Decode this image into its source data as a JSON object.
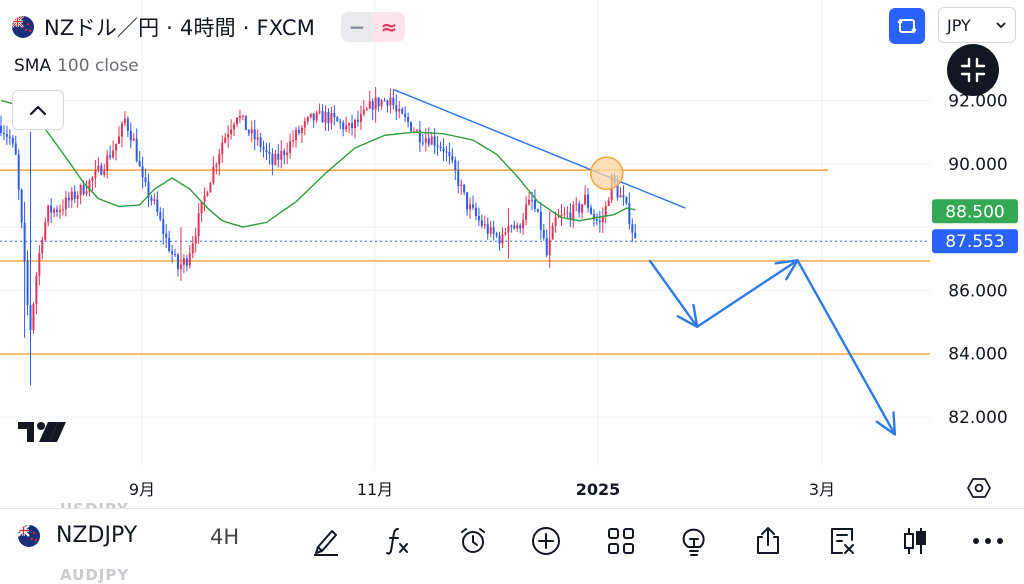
{
  "header": {
    "title": "NZドル／円 · 4時間 · FXCM",
    "indicator_name": "SMA",
    "indicator_params": "100 close",
    "currency_select": "JPY",
    "pill_left": "−",
    "pill_right": "≈"
  },
  "toolbar": {
    "symbol": "NZDJPY",
    "interval": "4H",
    "ghost_top": "USDJPY",
    "ghost_bottom": "AUDJPY"
  },
  "colors": {
    "up": "#e03655",
    "down": "#2f5bea",
    "sma": "#2f9e3b",
    "hline": "#f5a23a",
    "trend": "#2f7ae8",
    "accent": "#2962ff",
    "price_badge": "#2962ff",
    "sma_badge": "#34a853"
  },
  "chart_data": {
    "type": "candlestick",
    "title": "NZドル／円 · 4時間 · FXCM",
    "yticks": [
      "92.000",
      "90.000",
      "86.000",
      "84.000",
      "82.000"
    ],
    "xticks": [
      "9月",
      "11月",
      "2025",
      "3月"
    ],
    "ylim": [
      80.8,
      93.0
    ],
    "grid": true,
    "horizontal_levels": [
      89.8,
      86.93,
      83.99
    ],
    "current_price": "87.553",
    "sma_value": "88.500",
    "series": [
      {
        "name": "SMA 100 close",
        "anchors": [
          [
            0,
            92.0
          ],
          [
            8,
            91.8
          ],
          [
            15,
            91.1
          ],
          [
            22,
            90.2
          ],
          [
            28,
            89.4
          ],
          [
            33,
            88.9
          ],
          [
            40,
            88.65
          ],
          [
            47,
            88.7
          ],
          [
            52,
            89.2
          ],
          [
            58,
            89.55
          ],
          [
            64,
            89.2
          ],
          [
            70,
            88.6
          ],
          [
            75,
            88.2
          ],
          [
            82,
            88.0
          ],
          [
            90,
            88.15
          ],
          [
            100,
            88.8
          ],
          [
            110,
            89.7
          ],
          [
            120,
            90.5
          ],
          [
            130,
            90.9
          ],
          [
            140,
            91.0
          ],
          [
            150,
            90.95
          ],
          [
            160,
            90.75
          ],
          [
            168,
            90.3
          ],
          [
            175,
            89.6
          ],
          [
            182,
            88.8
          ],
          [
            190,
            88.3
          ],
          [
            196,
            88.2
          ],
          [
            202,
            88.3
          ],
          [
            208,
            88.4
          ],
          [
            212,
            88.6
          ],
          [
            215,
            88.55
          ]
        ]
      },
      {
        "name": "price",
        "anchors": [
          [
            0,
            91.2
          ],
          [
            3,
            90.8
          ],
          [
            5,
            90.2
          ],
          [
            7,
            88.0
          ],
          [
            9,
            85.5
          ],
          [
            10,
            84.8
          ],
          [
            12,
            86.5
          ],
          [
            14,
            87.8
          ],
          [
            16,
            88.5
          ],
          [
            20,
            88.6
          ],
          [
            25,
            89.0
          ],
          [
            30,
            89.4
          ],
          [
            35,
            90.0
          ],
          [
            40,
            90.8
          ],
          [
            42,
            91.4
          ],
          [
            45,
            90.7
          ],
          [
            48,
            89.4
          ],
          [
            52,
            88.7
          ],
          [
            56,
            87.6
          ],
          [
            60,
            86.7
          ],
          [
            63,
            87.0
          ],
          [
            66,
            87.9
          ],
          [
            70,
            89.3
          ],
          [
            75,
            90.7
          ],
          [
            80,
            91.6
          ],
          [
            84,
            91.0
          ],
          [
            88,
            90.6
          ],
          [
            92,
            90.0
          ],
          [
            96,
            90.4
          ],
          [
            100,
            90.9
          ],
          [
            105,
            91.4
          ],
          [
            110,
            91.5
          ],
          [
            114,
            91.3
          ],
          [
            118,
            91.1
          ],
          [
            122,
            91.4
          ],
          [
            126,
            91.9
          ],
          [
            130,
            92.0
          ],
          [
            132,
            92.1
          ],
          [
            134,
            91.6
          ],
          [
            138,
            91.3
          ],
          [
            142,
            90.9
          ],
          [
            146,
            90.8
          ],
          [
            150,
            90.5
          ],
          [
            154,
            89.7
          ],
          [
            158,
            88.7
          ],
          [
            162,
            88.2
          ],
          [
            166,
            87.8
          ],
          [
            170,
            87.6
          ],
          [
            172,
            88.2
          ],
          [
            175,
            87.9
          ],
          [
            178,
            88.6
          ],
          [
            180,
            88.8
          ],
          [
            183,
            88.0
          ],
          [
            185,
            87.1
          ],
          [
            188,
            88.2
          ],
          [
            192,
            88.4
          ],
          [
            196,
            88.6
          ],
          [
            198,
            88.9
          ],
          [
            201,
            88.3
          ],
          [
            203,
            88.1
          ],
          [
            205,
            88.6
          ],
          [
            207,
            89.5
          ],
          [
            209,
            89.1
          ],
          [
            211,
            88.8
          ],
          [
            213,
            88.3
          ],
          [
            215,
            87.55
          ]
        ]
      }
    ],
    "trendline": [
      [
        133,
        92.35
      ],
      [
        232,
        88.6
      ]
    ],
    "arrow_path": [
      [
        220,
        86.93
      ],
      [
        236,
        84.85
      ],
      [
        270,
        86.95
      ],
      [
        303,
        81.45
      ]
    ],
    "highlight_point": [
      205,
      89.7
    ]
  }
}
